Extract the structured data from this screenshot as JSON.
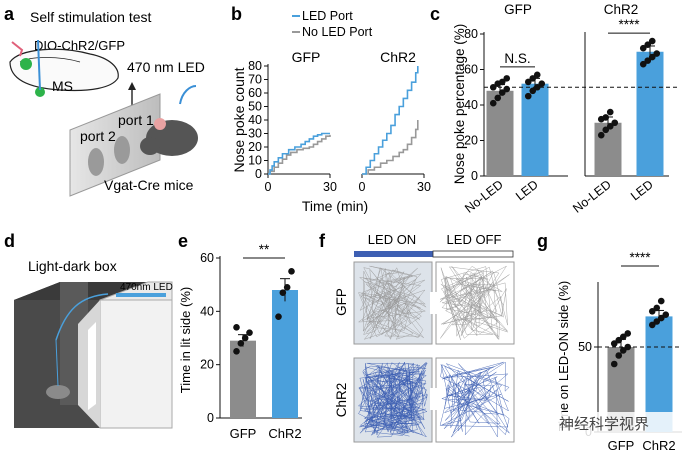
{
  "panel_labels": {
    "a": "a",
    "b": "b",
    "c": "c",
    "d": "d",
    "e": "e",
    "f": "f",
    "g": "g"
  },
  "panel_a": {
    "title": "Self stimulation test",
    "virus": "DIO-ChR2/GFP",
    "region": "MS",
    "led": "470 nm LED",
    "port1": "port 1",
    "port2": "port 2",
    "mice": "Vgat-Cre mice"
  },
  "panel_d": {
    "title": "Light-dark box",
    "led": "470nm LED"
  },
  "panel_f": {
    "led_on": "LED ON",
    "led_off": "LED OFF",
    "row1": "GFP",
    "row2": "ChR2"
  },
  "watermark": "神经科学视界",
  "colors": {
    "blue": "#4aa0dc",
    "gray": "#8c8c8c",
    "dark_blue": "#3d5fb3",
    "trace_gray": "#999999"
  },
  "chart_data": [
    {
      "id": "b",
      "type": "line",
      "ylabel": "Nose poke count",
      "xlabel": "Time (min)",
      "ylim": [
        0,
        80
      ],
      "yticks": [
        0,
        10,
        20,
        30,
        40,
        50,
        60,
        70,
        80
      ],
      "xlim": [
        0,
        30
      ],
      "xticks": [
        0,
        30
      ],
      "legend": [
        "LED Port",
        "No LED Port"
      ],
      "legend_position": "top",
      "subplots": [
        {
          "title": "GFP",
          "series": [
            {
              "name": "LED Port",
              "x": [
                0,
                1,
                2,
                3,
                5,
                7,
                10,
                13,
                16,
                18,
                20,
                22,
                24,
                26,
                30
              ],
              "y": [
                0,
                3,
                6,
                9,
                12,
                15,
                18,
                20,
                22,
                24,
                26,
                28,
                29,
                30,
                30
              ]
            },
            {
              "name": "No LED Port",
              "x": [
                0,
                1,
                3,
                5,
                7,
                9,
                11,
                14,
                17,
                20,
                22,
                24,
                26,
                28,
                30
              ],
              "y": [
                0,
                2,
                5,
                8,
                11,
                14,
                16,
                18,
                19,
                20,
                22,
                24,
                26,
                28,
                29
              ]
            }
          ]
        },
        {
          "title": "ChR2",
          "series": [
            {
              "name": "LED Port",
              "x": [
                0,
                2,
                4,
                6,
                8,
                10,
                12,
                14,
                16,
                18,
                20,
                22,
                24,
                26,
                27
              ],
              "y": [
                0,
                5,
                10,
                15,
                20,
                25,
                30,
                36,
                44,
                50,
                56,
                62,
                68,
                75,
                80
              ]
            },
            {
              "name": "No LED Port",
              "x": [
                0,
                3,
                6,
                9,
                12,
                15,
                18,
                20,
                22,
                24,
                26,
                27
              ],
              "y": [
                0,
                3,
                5,
                8,
                10,
                13,
                16,
                18,
                22,
                27,
                33,
                40
              ]
            }
          ]
        }
      ]
    },
    {
      "id": "c",
      "type": "bar",
      "ylabel": "Nose poke percentage (%)",
      "ylim": [
        0,
        80
      ],
      "yticks": [
        0,
        20,
        40,
        60,
        80
      ],
      "reference_line": 50,
      "groups": [
        {
          "title": "GFP",
          "categories": [
            "No-LED",
            "LED"
          ],
          "values": [
            48,
            52
          ],
          "points": [
            [
              41,
              44,
              47,
              49,
              50,
              52,
              53,
              55
            ],
            [
              45,
              48,
              50,
              52,
              53,
              55,
              57
            ]
          ],
          "significance": "N.S."
        },
        {
          "title": "ChR2",
          "categories": [
            "No-LED",
            "LED"
          ],
          "values": [
            30,
            70
          ],
          "points": [
            [
              23,
              26,
              28,
              30,
              32,
              33,
              36
            ],
            [
              63,
              65,
              67,
              69,
              72,
              74,
              76
            ]
          ],
          "significance": "****"
        }
      ]
    },
    {
      "id": "e",
      "type": "bar",
      "ylabel": "Time in lit side (%)",
      "ylim": [
        0,
        60
      ],
      "yticks": [
        0,
        20,
        40,
        60
      ],
      "categories": [
        "GFP",
        "ChR2"
      ],
      "values": [
        29,
        48
      ],
      "points": [
        [
          25,
          28,
          30,
          32,
          34
        ],
        [
          38,
          47,
          49,
          55
        ]
      ],
      "significance": "**"
    },
    {
      "id": "g",
      "type": "bar",
      "ylabel": "Time on LED-ON side (%)",
      "ylim": [
        0,
        100
      ],
      "yticks": [
        0,
        50
      ],
      "reference_line": 50,
      "categories": [
        "GFP",
        "ChR2"
      ],
      "values": [
        50,
        68
      ],
      "points": [
        [
          40,
          45,
          48,
          50,
          52,
          54,
          56,
          58
        ],
        [
          63,
          65,
          67,
          69,
          71,
          73,
          77
        ]
      ],
      "significance": "****"
    }
  ]
}
